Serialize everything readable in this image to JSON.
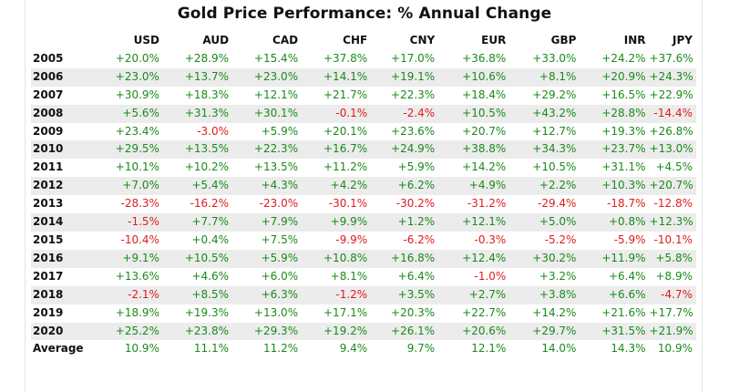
{
  "colors": {
    "positive": "#1a8a1a",
    "negative": "#e01b1b",
    "stripe": "#ececec"
  },
  "chart_data": {
    "type": "table",
    "title": "Gold Price Performance: % Annual Change",
    "columns": [
      "USD",
      "AUD",
      "CAD",
      "CHF",
      "CNY",
      "EUR",
      "GBP",
      "INR",
      "JPY"
    ],
    "rows": [
      {
        "year": "2005",
        "values": [
          "+20.0%",
          "+28.9%",
          "+15.4%",
          "+37.8%",
          "+17.0%",
          "+36.8%",
          "+33.0%",
          "+24.2%",
          "+37.6%"
        ]
      },
      {
        "year": "2006",
        "values": [
          "+23.0%",
          "+13.7%",
          "+23.0%",
          "+14.1%",
          "+19.1%",
          "+10.6%",
          "+8.1%",
          "+20.9%",
          "+24.3%"
        ]
      },
      {
        "year": "2007",
        "values": [
          "+30.9%",
          "+18.3%",
          "+12.1%",
          "+21.7%",
          "+22.3%",
          "+18.4%",
          "+29.2%",
          "+16.5%",
          "+22.9%"
        ]
      },
      {
        "year": "2008",
        "values": [
          "+5.6%",
          "+31.3%",
          "+30.1%",
          "-0.1%",
          "-2.4%",
          "+10.5%",
          "+43.2%",
          "+28.8%",
          "-14.4%"
        ]
      },
      {
        "year": "2009",
        "values": [
          "+23.4%",
          "-3.0%",
          "+5.9%",
          "+20.1%",
          "+23.6%",
          "+20.7%",
          "+12.7%",
          "+19.3%",
          "+26.8%"
        ]
      },
      {
        "year": "2010",
        "values": [
          "+29.5%",
          "+13.5%",
          "+22.3%",
          "+16.7%",
          "+24.9%",
          "+38.8%",
          "+34.3%",
          "+23.7%",
          "+13.0%"
        ]
      },
      {
        "year": "2011",
        "values": [
          "+10.1%",
          "+10.2%",
          "+13.5%",
          "+11.2%",
          "+5.9%",
          "+14.2%",
          "+10.5%",
          "+31.1%",
          "+4.5%"
        ]
      },
      {
        "year": "2012",
        "values": [
          "+7.0%",
          "+5.4%",
          "+4.3%",
          "+4.2%",
          "+6.2%",
          "+4.9%",
          "+2.2%",
          "+10.3%",
          "+20.7%"
        ]
      },
      {
        "year": "2013",
        "values": [
          "-28.3%",
          "-16.2%",
          "-23.0%",
          "-30.1%",
          "-30.2%",
          "-31.2%",
          "-29.4%",
          "-18.7%",
          "-12.8%"
        ]
      },
      {
        "year": "2014",
        "values": [
          "-1.5%",
          "+7.7%",
          "+7.9%",
          "+9.9%",
          "+1.2%",
          "+12.1%",
          "+5.0%",
          "+0.8%",
          "+12.3%"
        ]
      },
      {
        "year": "2015",
        "values": [
          "-10.4%",
          "+0.4%",
          "+7.5%",
          "-9.9%",
          "-6.2%",
          "-0.3%",
          "-5.2%",
          "-5.9%",
          "-10.1%"
        ]
      },
      {
        "year": "2016",
        "values": [
          "+9.1%",
          "+10.5%",
          "+5.9%",
          "+10.8%",
          "+16.8%",
          "+12.4%",
          "+30.2%",
          "+11.9%",
          "+5.8%"
        ]
      },
      {
        "year": "2017",
        "values": [
          "+13.6%",
          "+4.6%",
          "+6.0%",
          "+8.1%",
          "+6.4%",
          "-1.0%",
          "+3.2%",
          "+6.4%",
          "+8.9%"
        ]
      },
      {
        "year": "2018",
        "values": [
          "-2.1%",
          "+8.5%",
          "+6.3%",
          "-1.2%",
          "+3.5%",
          "+2.7%",
          "+3.8%",
          "+6.6%",
          "-4.7%"
        ]
      },
      {
        "year": "2019",
        "values": [
          "+18.9%",
          "+19.3%",
          "+13.0%",
          "+17.1%",
          "+20.3%",
          "+22.7%",
          "+14.2%",
          "+21.6%",
          "+17.7%"
        ]
      },
      {
        "year": "2020",
        "values": [
          "+25.2%",
          "+23.8%",
          "+29.3%",
          "+19.2%",
          "+26.1%",
          "+20.6%",
          "+29.7%",
          "+31.5%",
          "+21.9%"
        ]
      }
    ],
    "average": {
      "label": "Average",
      "values": [
        "10.9%",
        "11.1%",
        "11.2%",
        "9.4%",
        "9.7%",
        "12.1%",
        "14.0%",
        "14.3%",
        "10.9%"
      ]
    }
  }
}
